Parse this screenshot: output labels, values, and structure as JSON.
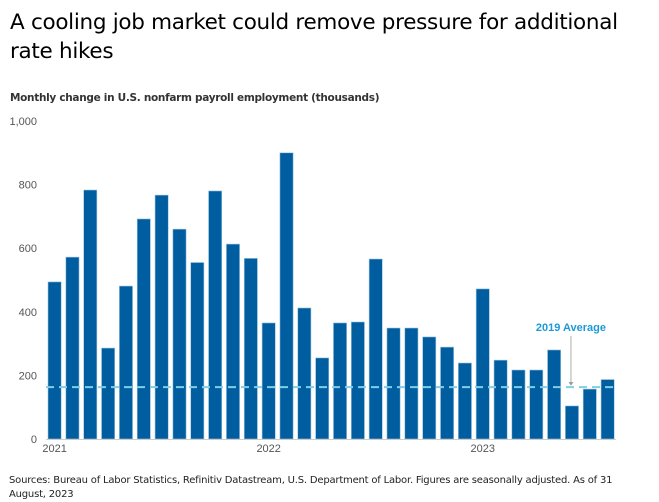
{
  "title": "A cooling job market could remove pressure for additional rate hikes",
  "subtitle": "Monthly change in U.S. nonfarm payroll employment (thousands)",
  "source": "Sources: Bureau of Labor Statistics, Refinitiv Datastream, U.S. Department of Labor. Figures are seasonally adjusted. As of 31 August, 2023",
  "colors": {
    "bar": "#005ea0",
    "bar_edge": "#9ec4e0",
    "average_line": "#7fd0e4",
    "annotation_text": "#1d9ad6",
    "annotation_arrow": "#999999",
    "axis": "#cccccc",
    "tick_text": "#555555"
  },
  "chart_data": {
    "type": "bar",
    "title": "A cooling job market could remove pressure for additional rate hikes",
    "subtitle": "Monthly change in U.S. nonfarm payroll employment (thousands)",
    "xlabel": "",
    "ylabel": "",
    "ylim": [
      0,
      1000
    ],
    "yticks": [
      0,
      200,
      400,
      600,
      800,
      1000
    ],
    "ytick_labels": [
      "0",
      "200",
      "400",
      "600",
      "800",
      "1,000"
    ],
    "grid": false,
    "x_tick_labels": [
      {
        "index": 0,
        "label": "2021"
      },
      {
        "index": 12,
        "label": "2022"
      },
      {
        "index": 24,
        "label": "2023"
      }
    ],
    "categories": [
      "Jan 2021",
      "Feb 2021",
      "Mar 2021",
      "Apr 2021",
      "May 2021",
      "Jun 2021",
      "Jul 2021",
      "Aug 2021",
      "Sep 2021",
      "Oct 2021",
      "Nov 2021",
      "Dec 2021",
      "Jan 2022",
      "Feb 2022",
      "Mar 2022",
      "Apr 2022",
      "May 2022",
      "Jun 2022",
      "Jul 2022",
      "Aug 2022",
      "Sep 2022",
      "Oct 2022",
      "Nov 2022",
      "Dec 2022",
      "Jan 2023",
      "Feb 2023",
      "Mar 2023",
      "Apr 2023",
      "May 2023",
      "Jun 2023",
      "Jul 2023",
      "Aug 2023"
    ],
    "values": [
      494,
      572,
      783,
      286,
      481,
      692,
      767,
      660,
      555,
      780,
      613,
      568,
      365,
      900,
      412,
      255,
      365,
      368,
      566,
      349,
      349,
      321,
      289,
      239,
      472,
      248,
      217,
      217,
      280,
      104,
      157,
      187
    ],
    "reference_line": {
      "label": "2019 Average",
      "value": 163,
      "style": "dashed"
    },
    "annotation": {
      "text": "2019 Average",
      "points_to_index": 29
    }
  }
}
